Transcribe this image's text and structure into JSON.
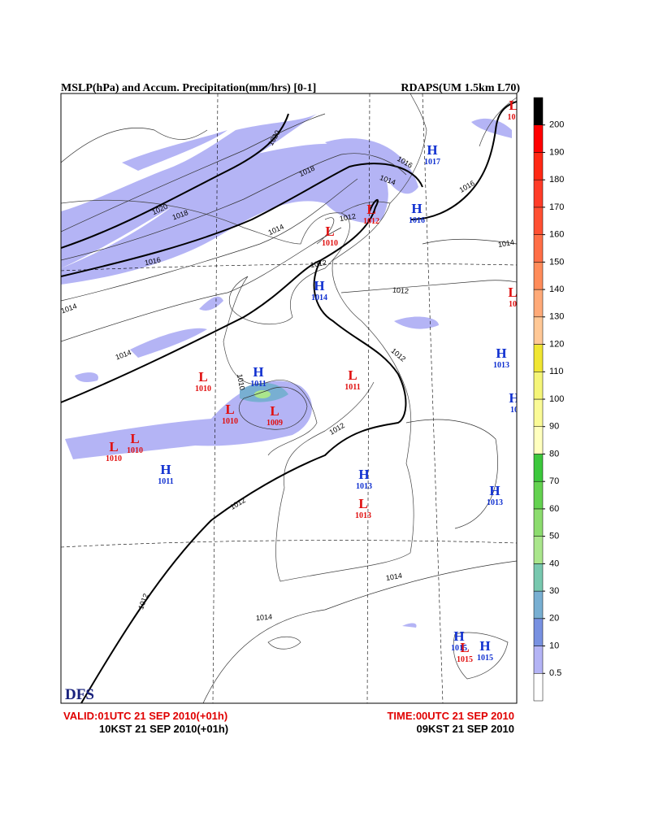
{
  "header": {
    "title": "MSLP(hPa) and Accum. Precipitation(mm/hrs) [0-1]",
    "model": "RDAPS(UM 1.5km L70)"
  },
  "map": {
    "logo": "DFS",
    "pressure_centers": [
      {
        "kind": "H",
        "value": "1017"
      },
      {
        "kind": "H",
        "value": "1016"
      },
      {
        "kind": "L",
        "value": "1012"
      },
      {
        "kind": "L",
        "value": "1010"
      },
      {
        "kind": "H",
        "value": "1014"
      },
      {
        "kind": "H",
        "value": "1013"
      },
      {
        "kind": "L",
        "value": "1011"
      },
      {
        "kind": "H",
        "value": "1011"
      },
      {
        "kind": "L",
        "value": "1010"
      },
      {
        "kind": "L",
        "value": "1010"
      },
      {
        "kind": "L",
        "value": "1009"
      },
      {
        "kind": "L",
        "value": "1010"
      },
      {
        "kind": "L",
        "value": "1010"
      },
      {
        "kind": "H",
        "value": "1011"
      },
      {
        "kind": "H",
        "value": "1013"
      },
      {
        "kind": "L",
        "value": "1013"
      },
      {
        "kind": "H",
        "value": "1013"
      },
      {
        "kind": "H",
        "value": "1015"
      },
      {
        "kind": "L",
        "value": "1015"
      },
      {
        "kind": "H",
        "value": "1015"
      },
      {
        "kind": "L",
        "value": "101"
      },
      {
        "kind": "L",
        "value": "10"
      },
      {
        "kind": "H",
        "value": "10"
      }
    ],
    "isobar_labels": [
      "1020",
      "1018",
      "1016",
      "1020",
      "1018",
      "1016",
      "1014",
      "1012",
      "1016",
      "1014",
      "1012",
      "1014",
      "1014",
      "1012",
      "1012",
      "1012",
      "1012",
      "1010",
      "1012",
      "1014",
      "1014",
      "1014"
    ]
  },
  "colorbar": {
    "levels": [
      0.5,
      10,
      20,
      30,
      40,
      50,
      60,
      70,
      80,
      90,
      100,
      110,
      120,
      130,
      140,
      150,
      160,
      170,
      180,
      190,
      200
    ],
    "colors": [
      "#ffffff",
      "#b4b4f5",
      "#7891e1",
      "#78afd2",
      "#78c8af",
      "#aae68c",
      "#8cdc6e",
      "#64d250",
      "#3cc83c",
      "#ffffbe",
      "#fafa96",
      "#f5f578",
      "#f0e632",
      "#ffc896",
      "#ffaa78",
      "#ff8c5a",
      "#ff6e46",
      "#ff5032",
      "#ff3c28",
      "#ff2814",
      "#ff0000",
      "#000000"
    ]
  },
  "footer": {
    "valid_utc": "VALID:01UTC 21 SEP 2010(+01h)",
    "valid_kst": "10KST 21 SEP 2010(+01h)",
    "time_utc": "TIME:00UTC 21 SEP 2010",
    "time_kst": "09KST 21 SEP 2010"
  }
}
